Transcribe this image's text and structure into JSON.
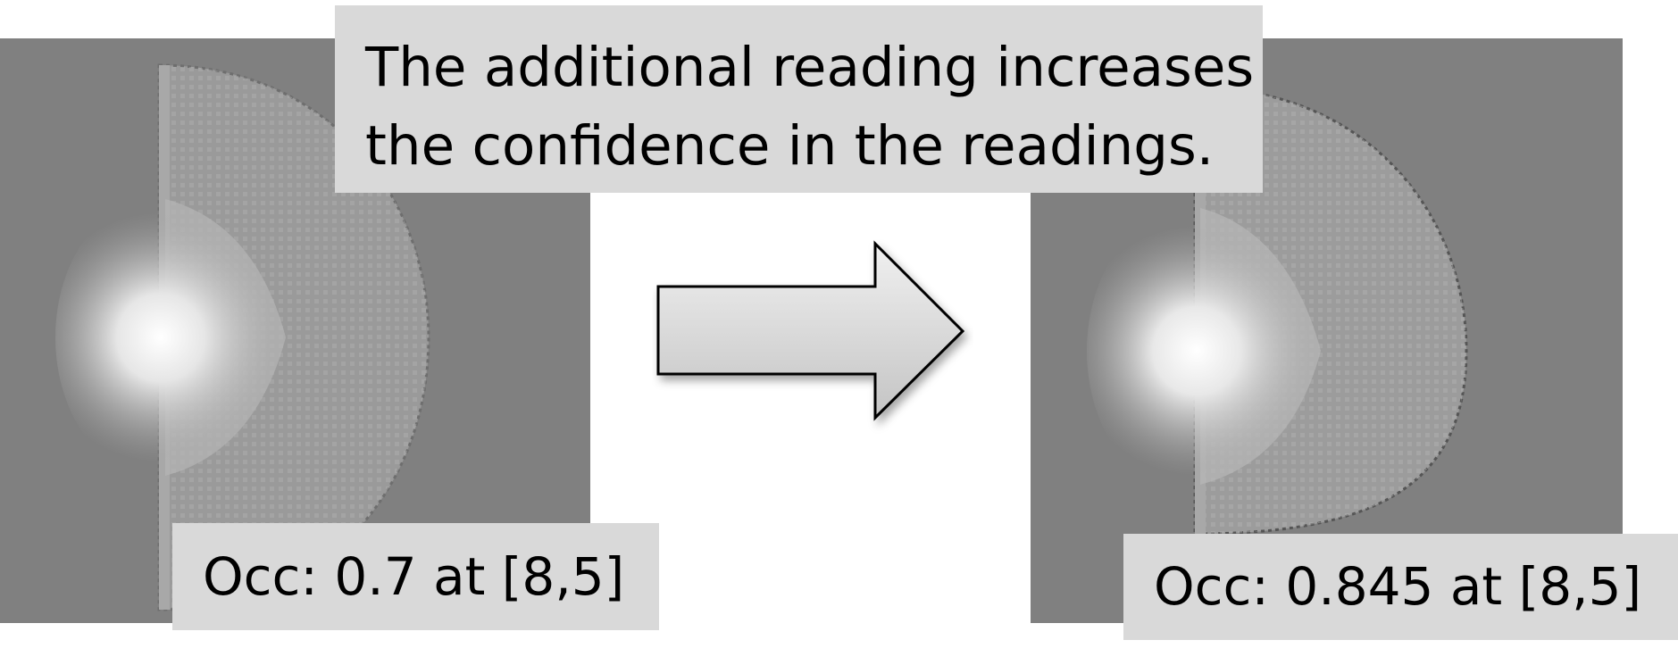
{
  "caption": {
    "line1": "The additional reading increases",
    "line2": "the confidence in the readings."
  },
  "before": {
    "occupancy_label": "Occ: 0.7 at [8,5]",
    "occupancy_value": 0.7,
    "cell": [
      8,
      5
    ]
  },
  "after": {
    "occupancy_label": "Occ: 0.845 at [8,5]",
    "occupancy_value": 0.845,
    "cell": [
      8,
      5
    ]
  },
  "arrow": {
    "icon": "right-arrow-icon",
    "fill": "#d6d6d6",
    "stroke": "#000000"
  },
  "colors": {
    "grid_background": "#808080",
    "label_background": "#d9d9d9",
    "sensor_hotspot": "#ffffff"
  }
}
